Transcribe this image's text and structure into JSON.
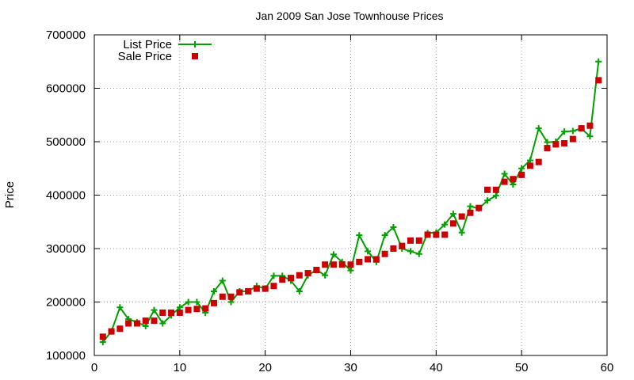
{
  "chart_data": {
    "type": "scatter",
    "title": "Jan 2009 San Jose Townhouse Prices",
    "xlabel": "",
    "ylabel": "Price",
    "xlim": [
      0,
      60
    ],
    "ylim": [
      100000,
      700000
    ],
    "xticks": [
      "0",
      "10",
      "20",
      "30",
      "40",
      "50",
      "60"
    ],
    "yticks": [
      "100000",
      "200000",
      "300000",
      "400000",
      "500000",
      "600000",
      "700000"
    ],
    "grid": true,
    "legend_position": "top-left",
    "series": [
      {
        "name": "List Price",
        "style": "linespoints",
        "color": "#00a000",
        "marker": "plus",
        "x": [
          1,
          2,
          3,
          4,
          5,
          6,
          7,
          8,
          9,
          10,
          11,
          12,
          13,
          14,
          15,
          16,
          17,
          18,
          19,
          20,
          21,
          22,
          23,
          24,
          25,
          26,
          27,
          28,
          29,
          30,
          31,
          32,
          33,
          34,
          35,
          36,
          37,
          38,
          39,
          40,
          41,
          42,
          43,
          44,
          45,
          46,
          47,
          48,
          49,
          50,
          51,
          52,
          53,
          54,
          55,
          56,
          57,
          58,
          59
        ],
        "values": [
          125000,
          145000,
          190000,
          168000,
          162000,
          155000,
          185000,
          160000,
          175000,
          190000,
          200000,
          200000,
          180000,
          220000,
          240000,
          200000,
          220000,
          220000,
          230000,
          225000,
          249000,
          249000,
          240000,
          220000,
          250000,
          260000,
          250000,
          289000,
          275000,
          259000,
          325000,
          295000,
          275000,
          325000,
          340000,
          300000,
          295000,
          290000,
          329000,
          330000,
          345000,
          365000,
          330000,
          379000,
          375000,
          390000,
          399000,
          440000,
          420000,
          450000,
          465000,
          525000,
          499000,
          500000,
          519000,
          520000,
          525000,
          510000,
          650000
        ]
      },
      {
        "name": "Sale Price",
        "style": "points",
        "color": "#cc0000",
        "marker": "square",
        "x": [
          1,
          2,
          3,
          4,
          5,
          6,
          7,
          8,
          9,
          10,
          11,
          12,
          13,
          14,
          15,
          16,
          17,
          18,
          19,
          20,
          21,
          22,
          23,
          24,
          25,
          26,
          27,
          28,
          29,
          30,
          31,
          32,
          33,
          34,
          35,
          36,
          37,
          38,
          39,
          40,
          41,
          42,
          43,
          44,
          45,
          46,
          47,
          48,
          49,
          50,
          51,
          52,
          53,
          54,
          55,
          56,
          57,
          58,
          59
        ],
        "values": [
          135000,
          145000,
          150000,
          160000,
          160000,
          165000,
          165000,
          180000,
          180000,
          180000,
          185000,
          187000,
          188000,
          198000,
          210000,
          210000,
          218000,
          220000,
          225000,
          225000,
          230000,
          242000,
          245000,
          250000,
          254000,
          260000,
          270000,
          270000,
          270000,
          270000,
          275000,
          280000,
          280000,
          290000,
          300000,
          305000,
          315000,
          315000,
          326000,
          326000,
          326000,
          347000,
          360000,
          367000,
          376000,
          410000,
          410000,
          425000,
          430000,
          438000,
          455000,
          462000,
          488000,
          495000,
          497000,
          505000,
          525000,
          530000,
          615000
        ]
      }
    ]
  }
}
